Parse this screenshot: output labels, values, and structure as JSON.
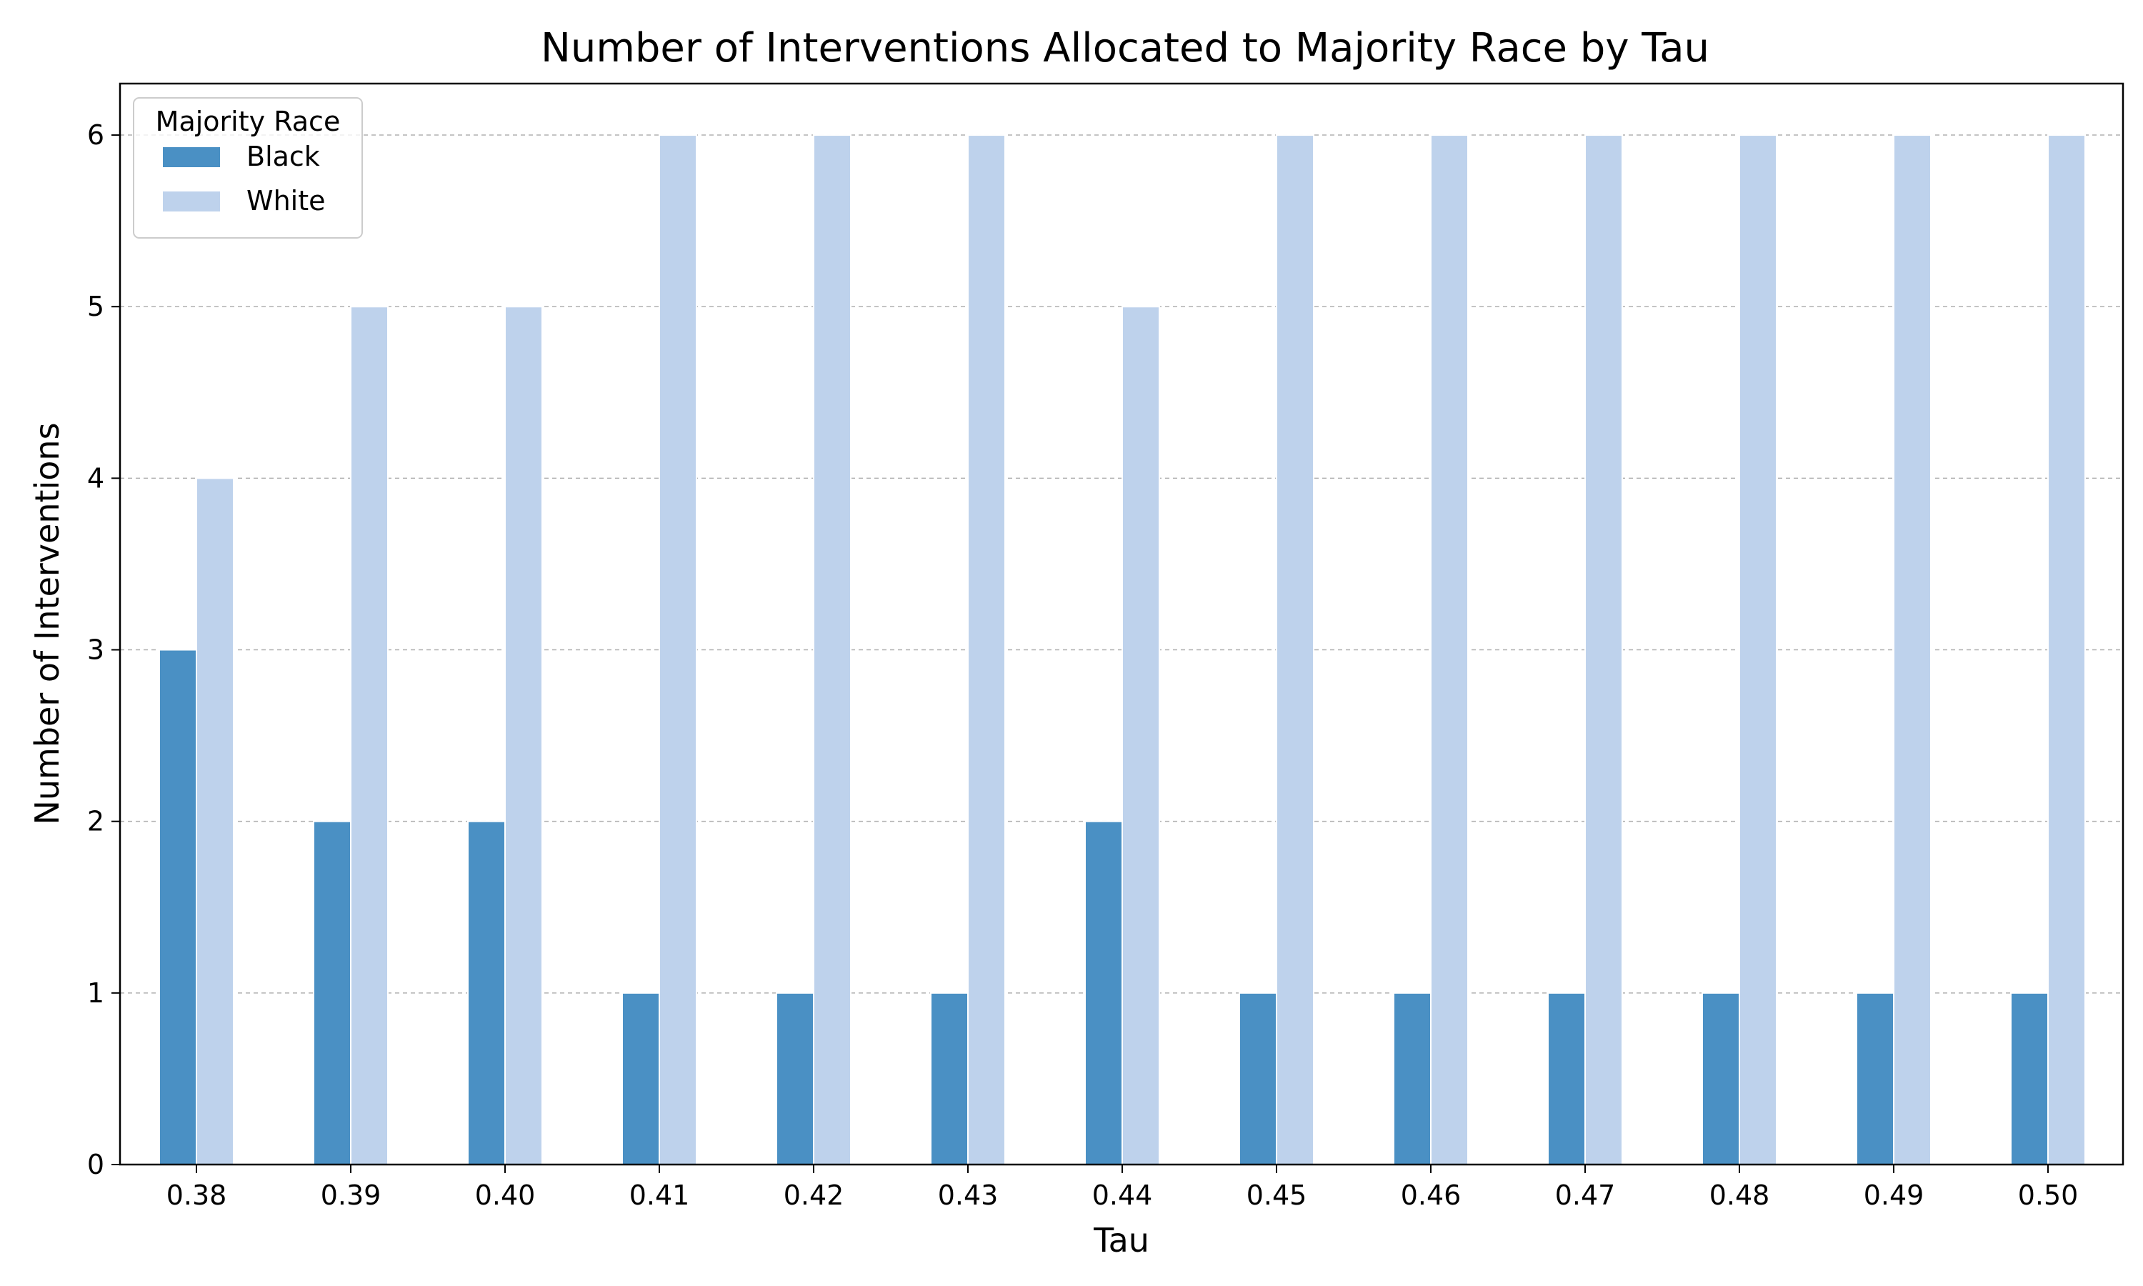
{
  "chart_data": {
    "type": "bar",
    "title": "Number of Interventions Allocated to Majority Race by Tau",
    "xlabel": "Tau",
    "ylabel": "Number of Interventions",
    "categories": [
      "0.38",
      "0.39",
      "0.40",
      "0.41",
      "0.42",
      "0.43",
      "0.44",
      "0.45",
      "0.46",
      "0.47",
      "0.48",
      "0.49",
      "0.50"
    ],
    "series": [
      {
        "name": "Black",
        "color": "#4a90c4",
        "values": [
          3,
          2,
          2,
          1,
          1,
          1,
          2,
          1,
          1,
          1,
          1,
          1,
          1
        ]
      },
      {
        "name": "White",
        "color": "#bed2ec",
        "values": [
          4,
          5,
          5,
          6,
          6,
          6,
          5,
          6,
          6,
          6,
          6,
          6,
          6
        ]
      }
    ],
    "yticks": [
      "0",
      "1",
      "2",
      "3",
      "4",
      "5",
      "6"
    ],
    "ylim": [
      0,
      6.3
    ],
    "grid": "y-dashed",
    "legend": {
      "title": "Majority Race",
      "placement": "top-left"
    }
  }
}
